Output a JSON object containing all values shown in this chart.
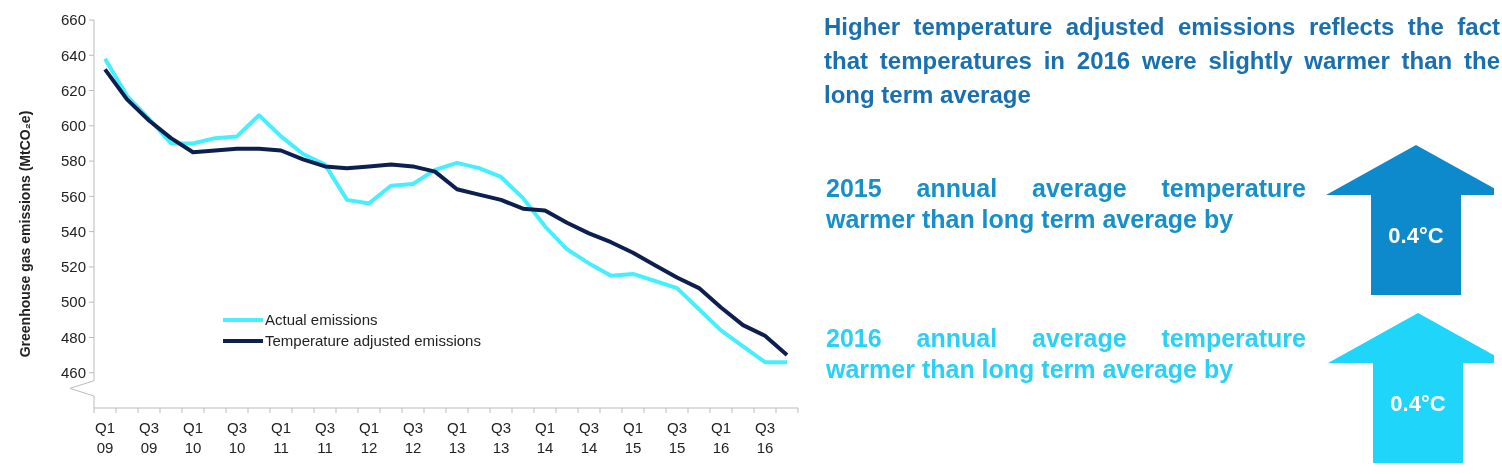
{
  "chart_data": {
    "type": "line",
    "ylabel": "Greenhouse gas emissions (MtCO₂e)",
    "categories": [
      "Q1 09",
      null,
      "Q3 09",
      null,
      "Q1 10",
      null,
      "Q3 10",
      null,
      "Q1 11",
      null,
      "Q3 11",
      null,
      "Q1 12",
      null,
      "Q3 12",
      null,
      "Q1 13",
      null,
      "Q3 13",
      null,
      "Q1 14",
      null,
      "Q3 14",
      null,
      "Q1 15",
      null,
      "Q3 15",
      null,
      "Q1 16",
      null,
      "Q3 16",
      null
    ],
    "series": [
      {
        "name": "Actual emissions",
        "color": "#45effc",
        "values": [
          638,
          617,
          604,
          590,
          590,
          593,
          594,
          606,
          594,
          584,
          578,
          558,
          556,
          566,
          567,
          575,
          579,
          576,
          571,
          559,
          543,
          530,
          522,
          515,
          516,
          512,
          508,
          496,
          484,
          475,
          466,
          466
        ]
      },
      {
        "name": "Temperature adjusted emissions",
        "color": "#0d1f4f",
        "values": [
          632,
          615,
          603,
          593,
          585,
          586,
          587,
          587,
          586,
          581,
          577,
          576,
          577,
          578,
          577,
          574,
          564,
          561,
          558,
          553,
          552,
          545,
          539,
          534,
          528,
          521,
          514,
          508,
          497,
          487,
          481,
          470
        ]
      }
    ],
    "ylim": [
      440,
      660
    ],
    "yticks": [
      460,
      480,
      500,
      520,
      540,
      560,
      580,
      600,
      620,
      640,
      660
    ],
    "grid": false,
    "legend": "bottom",
    "marker": "none",
    "line_style": "solid",
    "annotations": [
      "Higher temperature adjusted emissions reflects the fact that temperatures in 2016 were slightly warmer than the long term average",
      "2015 annual average temperature warmer than long term average by",
      "0.4°C",
      "2016 annual average temperature warmer than long term average by",
      "0.4°C"
    ]
  }
}
